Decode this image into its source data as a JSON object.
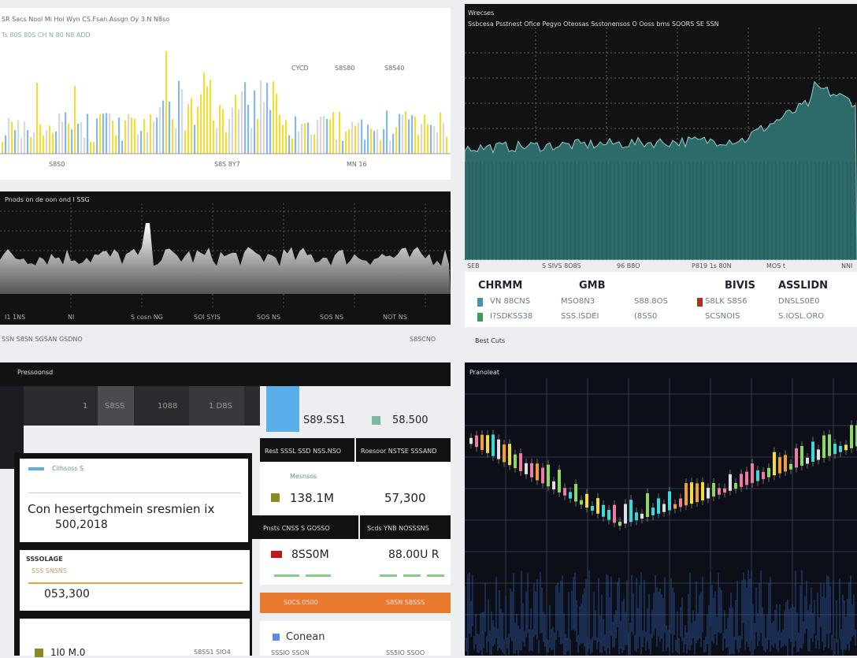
{
  "bars": {
    "title": "SR Sacs Nool Mi Hoi Wyn CS.Fsan Assgn Oy 3.N N8so",
    "subtitle": "Ts 80S 80S CH N 80 N8 ADD",
    "legend": [
      "CYCD",
      "S8S80",
      "S8S40"
    ],
    "axis": [
      "S8S0",
      "S8S 8Y7",
      "MN 16"
    ]
  },
  "area": {
    "title": "Pnods on de oon ond I SSG",
    "axis": [
      "I1 1NS",
      "NI",
      "S cosn NG",
      "SOI SYIS",
      "SOS NS",
      "SOS NS",
      "NOT NS"
    ],
    "footer_left": "SSN S8SN SGSAN GSDNO",
    "footer_right": "S8SCNO"
  },
  "teal": {
    "title": "Wrecses",
    "subtitle": "Ssbcesa   Psstnest Ofice Pegyo   Oteosas Ssstonensos   O Ooss bms SOORS SE SSN",
    "axis": [
      "SEB",
      "S SIVS 8O8S",
      "96 B8O",
      "P819 1s 80N",
      "MOS t",
      "NNI"
    ],
    "table": {
      "header": [
        "CHRMM",
        "GMB",
        "BIVIS",
        "ASSLIDN"
      ],
      "rows": [
        [
          "VN 88CNS",
          "MSO8N3",
          "S88.8OS",
          "S8LK S8S6",
          "DNSLS0E0"
        ],
        [
          "I?SDKSS38",
          "SSS.ISDEI",
          "(8SS0",
          "SCSNOIS",
          "S.IOSL.ORO"
        ]
      ]
    },
    "footer": "Best Cuts"
  },
  "cards": {
    "header": "Pressoonsd",
    "segments": [
      "1",
      "S8SS",
      "1088",
      "1 D8S"
    ],
    "kpi_a": "S89.SS1",
    "kpi_b": "58.500",
    "tabs1": [
      "Rest SSSL SSD NSS.NSO",
      "Roesoor NSTSE SSSAND"
    ],
    "card1_label": "Mesnsos",
    "card1_a": "138.1M",
    "card1_b": "57,300",
    "tabs2": [
      "Pnsts CNSS S GOSSO",
      "Scds YNB NOSSSNS"
    ],
    "card2_a": "8SS0M",
    "card2_b": "88.00U R",
    "orange": [
      "S0CS.0500",
      "S8SN S8SSS"
    ],
    "card3_label": "Conean",
    "card3_a": "SSSIO SSON",
    "card3_b": "SS5IO SSOO",
    "left1_label": "Cilhsoss S",
    "left1_text": "Con hesertgchmein sresmien ix",
    "left1_value": "500,2018",
    "left2_label": "SSSOLAGE",
    "left2_sub": "SSS SNSNS",
    "left2_value": "053,300",
    "left3_a": "1I0 M.0",
    "left3_b": "S8SS1 SIO4"
  },
  "candles": {
    "title": "Pranoleat"
  }
}
